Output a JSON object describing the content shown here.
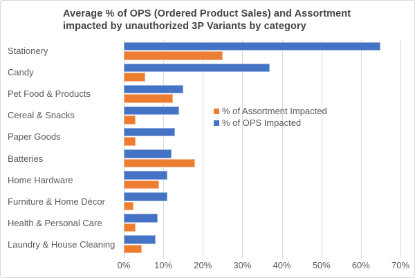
{
  "title": {
    "lines": [
      "Average % of OPS (Ordered Product Sales) and Assortment",
      "impacted by unauthorized 3P Variants by category"
    ]
  },
  "colors": {
    "ops_blue": "#4472C4",
    "assortment_orange": "#ED7D31",
    "gridline": "#dadada",
    "axis_text": "#595959",
    "title_text": "#444444"
  },
  "chart_data": {
    "type": "bar",
    "orientation": "horizontal",
    "title": "Average % of OPS (Ordered Product Sales) and Assortment impacted by unauthorized 3P Variants by category",
    "categories": [
      "Stationery",
      "Candy",
      "Pet Food & Products",
      "Cereal & Snacks",
      "Paper Goods",
      "Batteries",
      "Home Hardware",
      "Furniture & Home Décor",
      "Health & Personal Care",
      "Laundry & House Cleaning"
    ],
    "series": [
      {
        "name": "% of OPS Impacted",
        "color": "#4472C4",
        "values": [
          65,
          37,
          15,
          14,
          13,
          12,
          11,
          11,
          8.5,
          8
        ]
      },
      {
        "name": "% of Assortment Impacted",
        "color": "#ED7D31",
        "values": [
          25,
          5.5,
          12.5,
          3,
          3,
          18,
          9,
          2.5,
          3,
          4.5
        ]
      }
    ],
    "bar_order_top_to_bottom": [
      "% of OPS Impacted",
      "% of Assortment Impacted"
    ],
    "xlim": [
      0,
      70
    ],
    "x_tick_values": [
      0,
      10,
      20,
      30,
      40,
      50,
      60,
      70
    ],
    "x_tick_labels": [
      "0%",
      "10%",
      "20%",
      "30%",
      "40%",
      "50%",
      "60%",
      "70%"
    ],
    "grid": "vertical",
    "legend_position": "center-right-inside",
    "legend": [
      {
        "label": "% of Assortment Impacted",
        "color": "#ED7D31"
      },
      {
        "label": "% of OPS Impacted",
        "color": "#4472C4"
      }
    ]
  }
}
